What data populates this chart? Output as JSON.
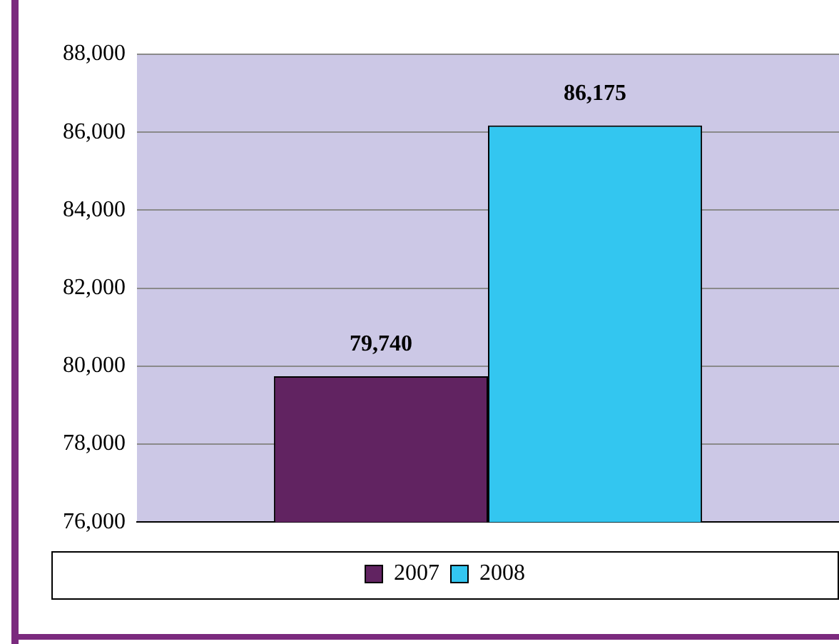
{
  "chart_data": {
    "type": "bar",
    "categories": [
      null
    ],
    "series": [
      {
        "name": "2007",
        "color": "#612361",
        "values": [
          79740
        ],
        "value_labels": [
          "79,740"
        ]
      },
      {
        "name": "2008",
        "color": "#33c6f0",
        "values": [
          86175
        ],
        "value_labels": [
          "86,175"
        ]
      }
    ],
    "ylim": [
      76000,
      88000
    ],
    "yticks": [
      {
        "value": 76000,
        "label": "76,000"
      },
      {
        "value": 78000,
        "label": "78,000"
      },
      {
        "value": 80000,
        "label": "80,000"
      },
      {
        "value": 82000,
        "label": "82,000"
      },
      {
        "value": 84000,
        "label": "84,000"
      },
      {
        "value": 86000,
        "label": "86,000"
      },
      {
        "value": 88000,
        "label": "88,000"
      }
    ],
    "grid": "y",
    "legend": "bottom"
  }
}
